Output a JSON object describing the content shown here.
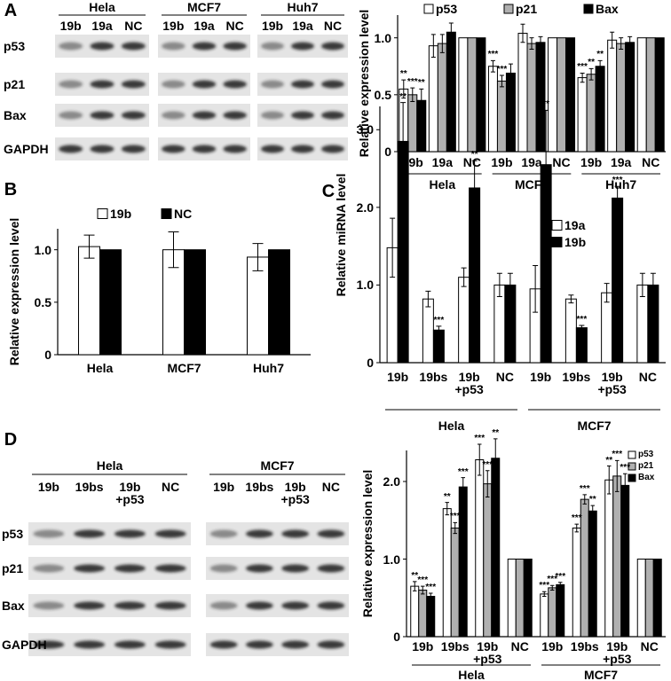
{
  "panel_letters": [
    "A",
    "B",
    "C",
    "D"
  ],
  "blots": [
    {
      "rows": [
        "p53",
        "p21",
        "Bax",
        "GAPDH"
      ],
      "groups": [
        {
          "name": "Hela",
          "lanes": [
            "19b",
            "19a",
            "NC"
          ]
        },
        {
          "name": "MCF7",
          "lanes": [
            "19b",
            "19a",
            "NC"
          ]
        },
        {
          "name": "Huh7",
          "lanes": [
            "19b",
            "19a",
            "NC"
          ]
        }
      ]
    },
    {
      "rows": [
        "p53",
        "p21",
        "Bax",
        "GAPDH"
      ],
      "groups": [
        {
          "name": "Hela",
          "lanes": [
            "19b",
            "19bs",
            "19b\n+p53",
            "NC"
          ]
        },
        {
          "name": "MCF7",
          "lanes": [
            "19b",
            "19bs",
            "19b\n+p53",
            "NC"
          ]
        }
      ]
    }
  ],
  "chart_data": [
    {
      "type": "bar",
      "y_label": "Relative expression level",
      "categories": [
        "19b",
        "19a",
        "NC",
        "19b",
        "19a",
        "NC",
        "19b",
        "19a",
        "NC"
      ],
      "group_labels": [
        "Hela",
        "MCF7",
        "Huh7"
      ],
      "series": [
        {
          "name": "p53",
          "color": "#ffffff",
          "values": [
            0.55,
            0.93,
            1,
            0.75,
            1.04,
            1,
            0.65,
            0.98,
            1
          ],
          "errors": [
            0.08,
            0.1,
            null,
            0.05,
            0.08,
            null,
            0.04,
            0.07,
            null
          ],
          "annotations": [
            "**",
            null,
            null,
            "***",
            null,
            null,
            "***",
            null,
            null
          ]
        },
        {
          "name": "p21",
          "color": "#b0b0b0",
          "values": [
            0.5,
            0.95,
            1,
            0.62,
            0.95,
            1,
            0.68,
            0.95,
            1
          ],
          "errors": [
            0.06,
            0.08,
            null,
            0.05,
            0.05,
            null,
            0.05,
            0.05,
            null
          ],
          "annotations": [
            "***",
            null,
            null,
            "***",
            null,
            null,
            "**",
            null,
            null
          ]
        },
        {
          "name": "Bax",
          "color": "#000000",
          "values": [
            0.45,
            1.05,
            1,
            0.69,
            0.96,
            1,
            0.75,
            0.96,
            1
          ],
          "errors": [
            0.1,
            0.08,
            null,
            0.08,
            0.05,
            null,
            0.05,
            0.05,
            null
          ],
          "annotations": [
            "**",
            null,
            null,
            null,
            null,
            null,
            "**",
            null,
            null
          ]
        }
      ],
      "ylim": [
        0,
        1.2
      ],
      "yticks": [
        0,
        0.5,
        {
          "value": 1,
          "label": "1.0"
        }
      ],
      "legend": "top"
    },
    {
      "type": "bar",
      "y_label": "Relative expression level",
      "categories": [
        "Hela",
        "MCF7",
        "Huh7"
      ],
      "series": [
        {
          "name": "19b",
          "color": "#ffffff",
          "values": [
            1.03,
            1.0,
            0.93
          ],
          "errors": [
            0.11,
            0.17,
            0.13
          ]
        },
        {
          "name": "NC",
          "color": "#000000",
          "values": [
            1,
            1,
            1
          ],
          "errors": [
            null,
            null,
            null
          ]
        }
      ],
      "ylim": [
        0,
        1.2
      ],
      "yticks": [
        0,
        0.5,
        {
          "value": 1,
          "label": "1.0"
        }
      ],
      "legend": "top"
    },
    {
      "type": "bar",
      "y_label": "Relative miRNA level",
      "categories": [
        "19b",
        "19bs",
        "19b\n+p53",
        "NC",
        "19b",
        "19bs",
        "19b\n+p53",
        "NC"
      ],
      "group_labels": [
        "Hela",
        "MCF7"
      ],
      "series": [
        {
          "name": "19a",
          "color": "#ffffff",
          "values": [
            1.48,
            0.82,
            1.1,
            1.0,
            0.95,
            0.82,
            0.9,
            1.0
          ],
          "errors": [
            0.38,
            0.1,
            0.12,
            0.15,
            0.3,
            0.05,
            0.12,
            0.15
          ],
          "annotations": [
            null,
            null,
            null,
            null,
            null,
            null,
            null,
            null
          ]
        },
        {
          "name": "19b",
          "color": "#000000",
          "values": [
            2.85,
            0.42,
            2.25,
            1.0,
            2.55,
            0.45,
            2.12,
            1.0
          ],
          "errors": [
            0.5,
            0.05,
            0.35,
            0.15,
            0.7,
            0.03,
            0.15,
            0.15
          ],
          "annotations": [
            "**",
            "***",
            "**",
            null,
            "**",
            "***",
            "***",
            null
          ]
        }
      ],
      "ylim": [
        0,
        3.3
      ],
      "yticks": [
        0,
        {
          "value": 1,
          "label": "1.0"
        },
        {
          "value": 2,
          "label": "2.0"
        },
        {
          "value": 3,
          "label": "3.0"
        }
      ],
      "legend": "right"
    },
    {
      "type": "bar",
      "y_label": "Relative expression level",
      "categories": [
        "19b",
        "19bs",
        "19b\n+p53",
        "NC",
        "19b",
        "19bs",
        "19b\n+p53",
        "NC"
      ],
      "group_labels": [
        "Hela",
        "MCF7"
      ],
      "series": [
        {
          "name": "p53",
          "color": "#ffffff",
          "values": [
            0.65,
            1.65,
            2.28,
            1,
            0.55,
            1.4,
            2.02,
            1
          ],
          "errors": [
            0.06,
            0.08,
            0.2,
            null,
            0.03,
            0.05,
            0.18,
            null
          ],
          "annotations": [
            "**",
            "**",
            "***",
            null,
            "***",
            "***",
            "**",
            null
          ]
        },
        {
          "name": "p21",
          "color": "#b0b0b0",
          "values": [
            0.6,
            1.4,
            1.97,
            1,
            0.63,
            1.77,
            2.07,
            1
          ],
          "errors": [
            0.05,
            0.07,
            0.17,
            null,
            0.03,
            0.06,
            0.2,
            null
          ],
          "annotations": [
            "***",
            "***",
            "***",
            null,
            "***",
            "***",
            "***",
            null
          ]
        },
        {
          "name": "Bax",
          "color": "#000000",
          "values": [
            0.52,
            1.93,
            2.3,
            1,
            0.67,
            1.62,
            1.95,
            1
          ],
          "errors": [
            0.04,
            0.12,
            0.25,
            null,
            0.03,
            0.07,
            0.15,
            null
          ],
          "annotations": [
            "***",
            "***",
            "**",
            null,
            "***",
            "**",
            "***",
            null
          ]
        }
      ],
      "ylim": [
        0,
        2.4
      ],
      "yticks": [
        0,
        {
          "value": 1,
          "label": "1.0"
        },
        {
          "value": 2,
          "label": "2.0"
        }
      ],
      "legend": "top-right"
    }
  ]
}
